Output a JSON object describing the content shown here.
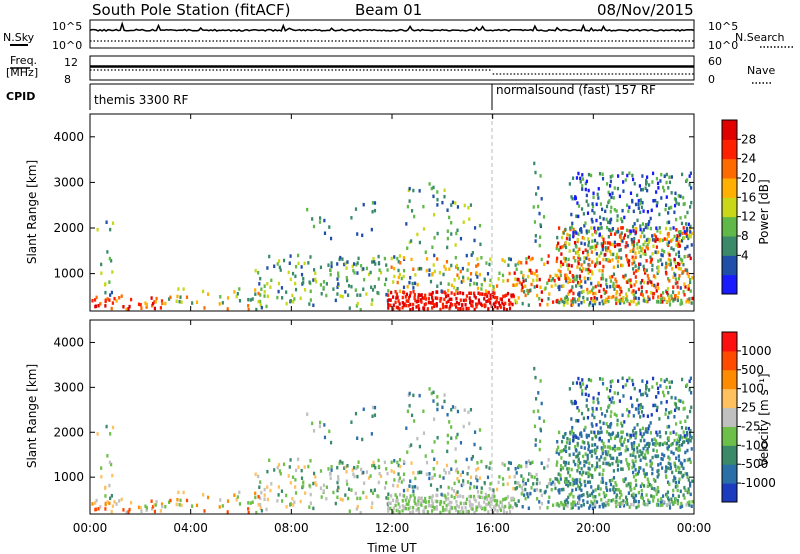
{
  "header": {
    "station": "South Pole Station (fitACF)",
    "beam": "Beam 01",
    "date": "08/Nov/2015"
  },
  "top_panels": {
    "nsky_label": "N.Sky",
    "nsearch_label": "N.Search",
    "freq_label_line1": "Freq.",
    "freq_label_line2": "[MHz]",
    "nave_label": "Nave",
    "cpid_label": "CPID",
    "nsky_ticks": [
      "10^5",
      "10^0"
    ],
    "nsearch_ticks": [
      "10^5",
      "10^0"
    ],
    "freq_ticks": [
      "12",
      "8"
    ],
    "nave_ticks": [
      "60",
      "0"
    ],
    "cpid_segments": [
      {
        "text": "themis 3300 RF",
        "start_hour": 0
      },
      {
        "text": "normalsound (fast) 157 RF",
        "start_hour": 16
      }
    ]
  },
  "chart_data": [
    {
      "type": "heatmap",
      "title": "",
      "xlabel": "",
      "ylabel": "Slant Range [km]",
      "xlim": [
        0,
        24
      ],
      "ylim": [
        180,
        4500
      ],
      "yticks": [
        1000,
        2000,
        3000,
        4000
      ],
      "colorbar": {
        "label": "Power [dB]",
        "ticks": [
          "28",
          "24",
          "20",
          "16",
          "12",
          "8",
          "4"
        ],
        "colors": [
          "#1a1aff",
          "#1f4fa8",
          "#3a8a6a",
          "#5fb848",
          "#c8d818",
          "#ffb000",
          "#ff6a00",
          "#ff2000",
          "#e00000"
        ]
      },
      "mode_change_hour": 16
    },
    {
      "type": "heatmap",
      "title": "",
      "xlabel": "Time UT",
      "ylabel": "Slant Range [km]",
      "xlim": [
        0,
        24
      ],
      "ylim": [
        180,
        4500
      ],
      "yticks": [
        1000,
        2000,
        3000,
        4000
      ],
      "xticks": [
        "00:00",
        "04:00",
        "08:00",
        "12:00",
        "16:00",
        "20:00",
        "00:00"
      ],
      "colorbar": {
        "label": "Velocity [m s⁻¹]",
        "ticks": [
          "1000",
          "500",
          "100",
          "25",
          "-25",
          "-100",
          "-500",
          "-1000"
        ],
        "colors": [
          "#1c3cc0",
          "#2a6fa8",
          "#3a8a6a",
          "#6cc04a",
          "#c0c0c0",
          "#ffc060",
          "#ff8c00",
          "#ff4a00",
          "#ff1010"
        ]
      },
      "mode_change_hour": 16
    }
  ]
}
